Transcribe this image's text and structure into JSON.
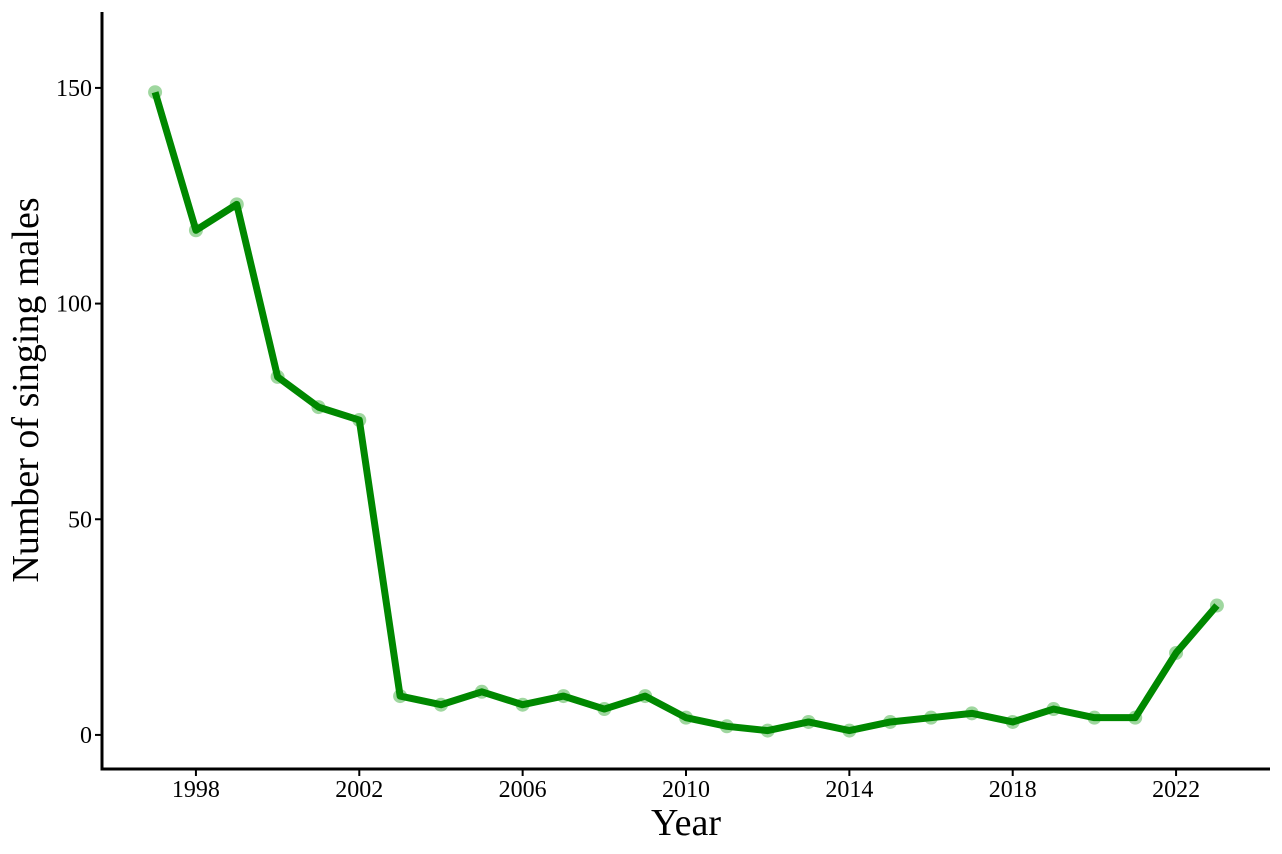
{
  "chart_data": {
    "type": "line",
    "x_label": "Year",
    "y_label": "Number of singing males",
    "x": [
      1997,
      1998,
      1999,
      2000,
      2001,
      2002,
      2003,
      2004,
      2005,
      2006,
      2007,
      2008,
      2009,
      2010,
      2011,
      2012,
      2013,
      2014,
      2015,
      2016,
      2017,
      2018,
      2019,
      2020,
      2021,
      2022,
      2023
    ],
    "series": [
      {
        "color": "#008800",
        "marker_color": "#7fc97f",
        "values": [
          149,
          117,
          123,
          83,
          76,
          73,
          9,
          7,
          10,
          7,
          9,
          6,
          9,
          4,
          2,
          1,
          3,
          1,
          3,
          4,
          5,
          3,
          6,
          4,
          4,
          19,
          30
        ]
      }
    ],
    "xlim": [
      1995.7,
      2024.3
    ],
    "xticks": [
      1998,
      2002,
      2006,
      2010,
      2014,
      2018,
      2022
    ],
    "ylim": [
      -7.9,
      167.6
    ],
    "yticks": [
      0,
      50,
      100,
      150
    ]
  }
}
